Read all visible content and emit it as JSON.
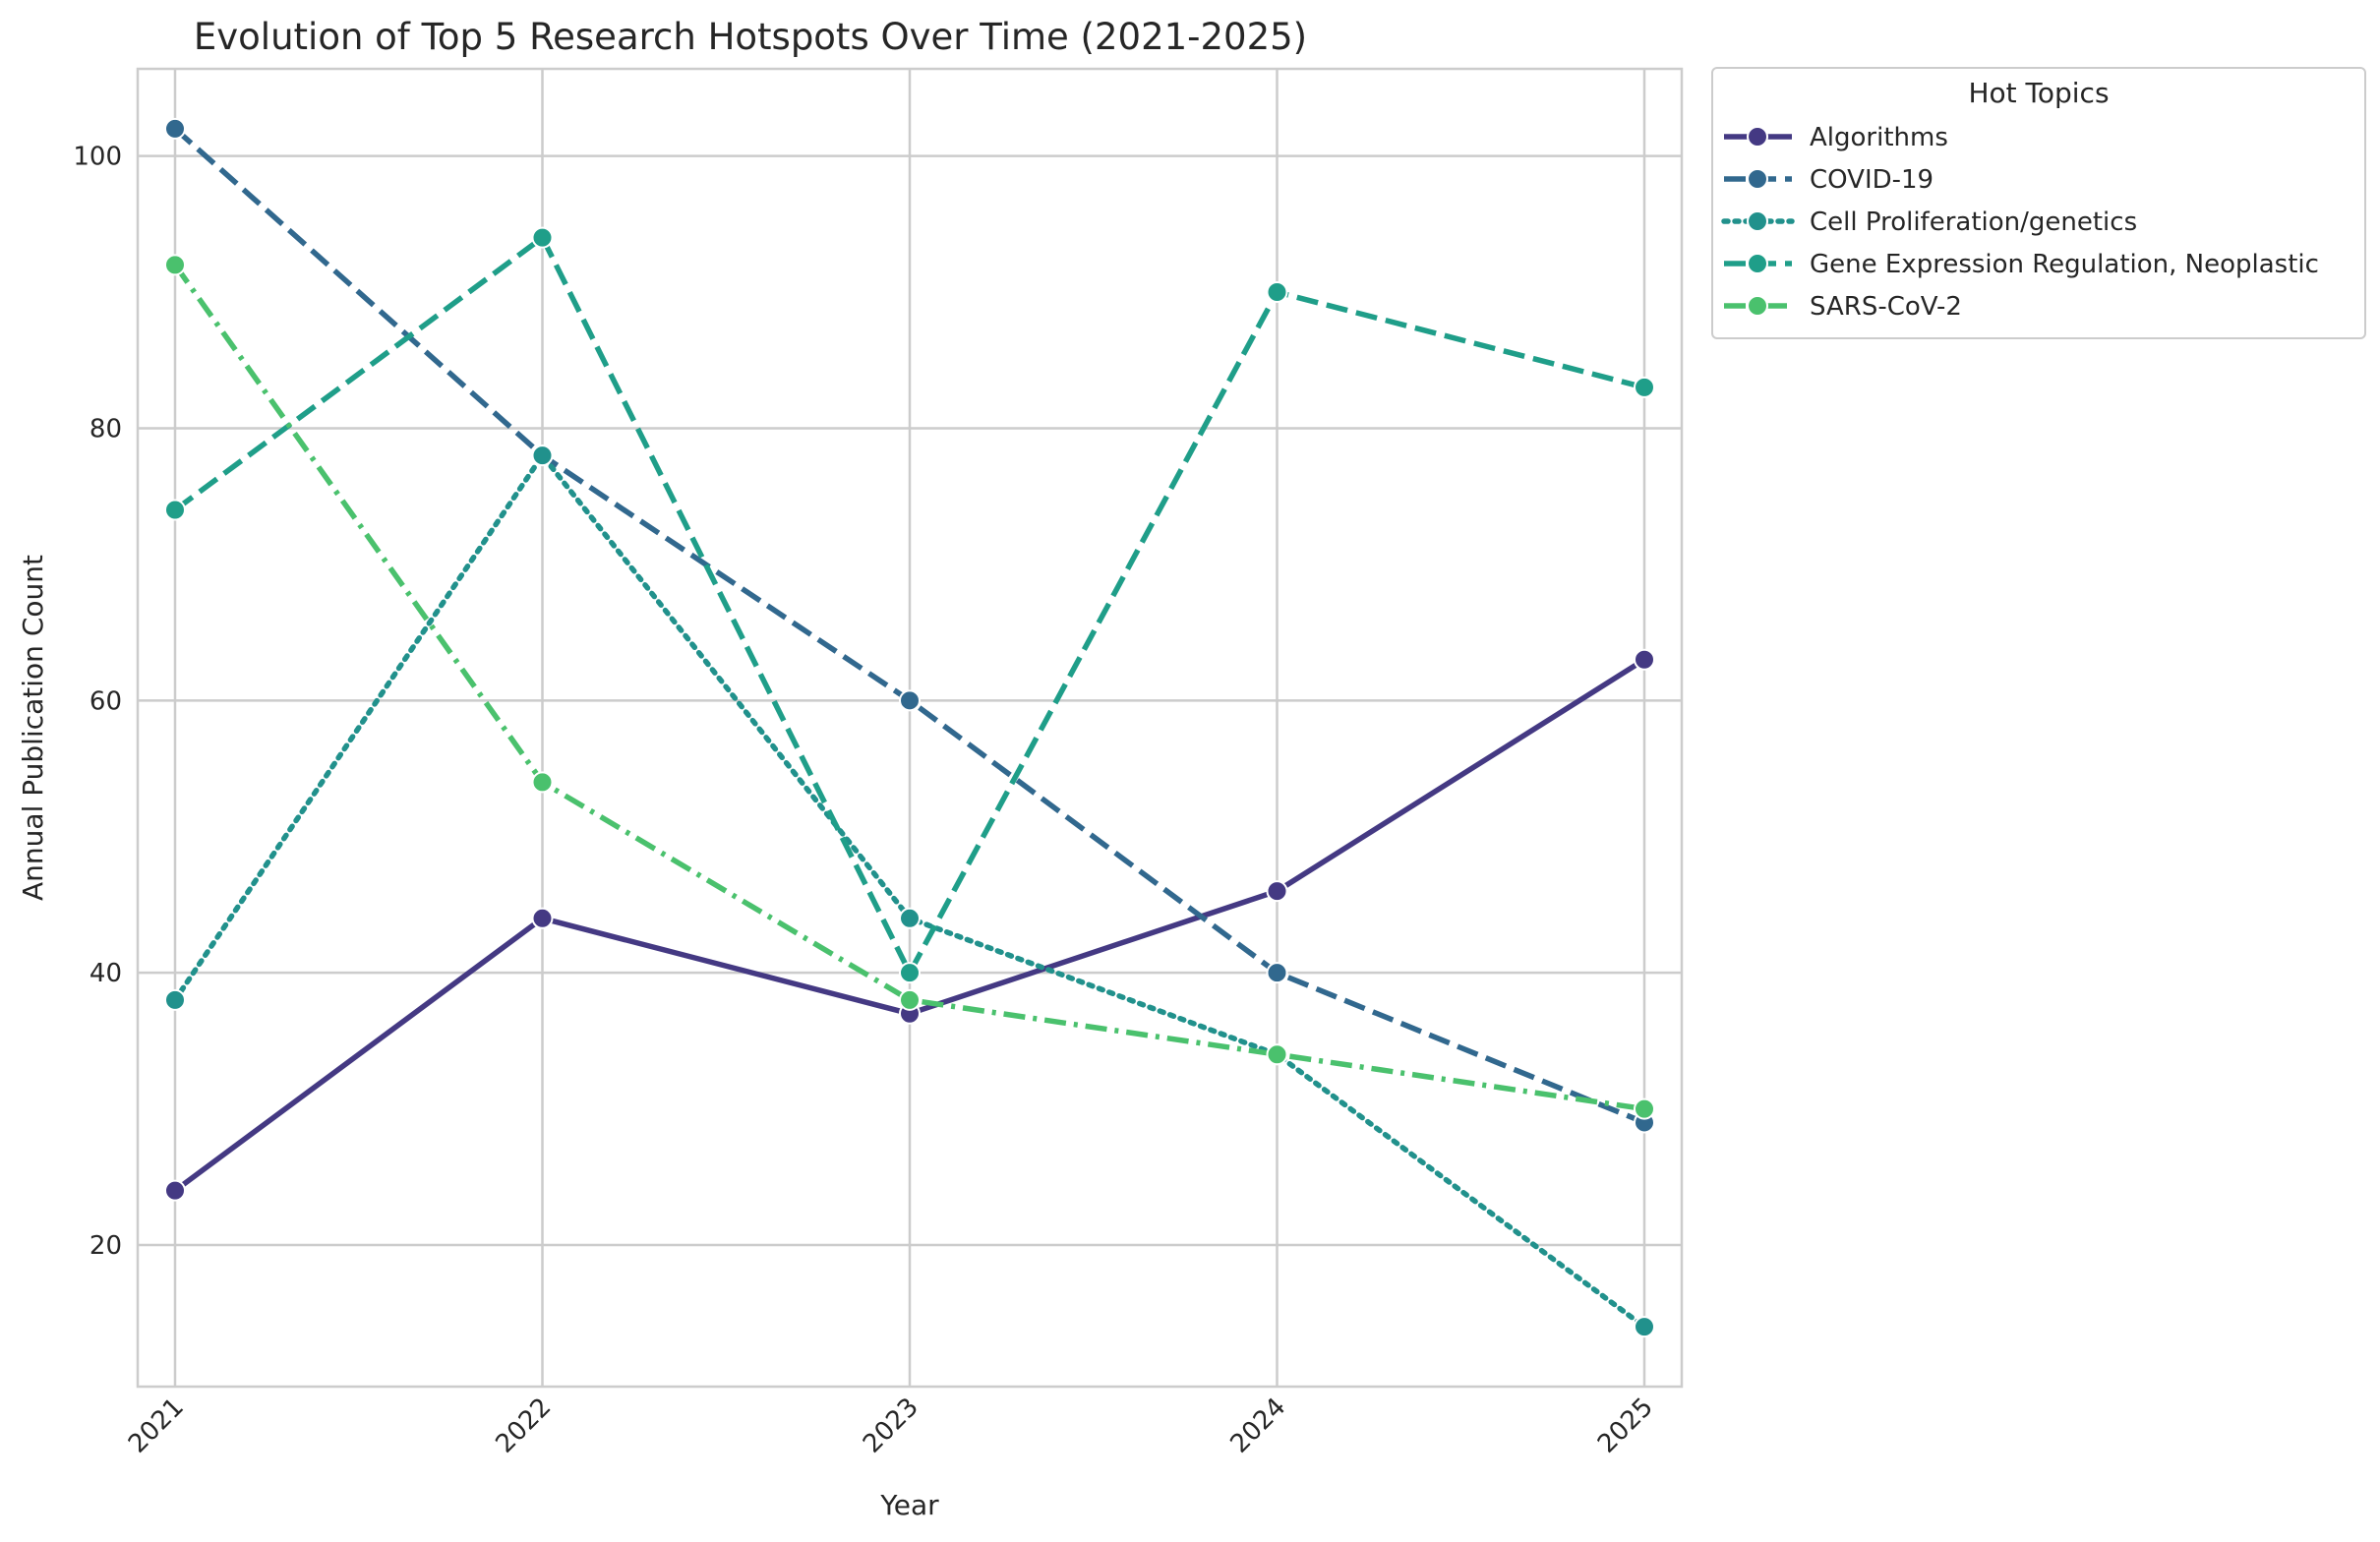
{
  "chart_data": {
    "type": "line",
    "title": "Evolution of Top 5 Research Hotspots Over Time (2021-2025)",
    "xlabel": "Year",
    "ylabel": "Annual Publication Count",
    "x": [
      "2021",
      "2022",
      "2023",
      "2024",
      "2025"
    ],
    "ylim": [
      9.6,
      106.4
    ],
    "yticks": [
      20,
      40,
      60,
      80,
      100
    ],
    "grid": true,
    "legend": {
      "title": "Hot Topics",
      "placement": "outside-top-right"
    },
    "series": [
      {
        "name": "Algorithms",
        "values": [
          24,
          44,
          37,
          46,
          63
        ],
        "color": "#443983",
        "dash": "solid"
      },
      {
        "name": "COVID-19",
        "values": [
          102,
          78,
          60,
          40,
          29
        ],
        "color": "#31688e",
        "dash": "dashed"
      },
      {
        "name": "Cell Proliferation/genetics",
        "values": [
          38,
          78,
          44,
          34,
          14
        ],
        "color": "#21918c",
        "dash": "dotted"
      },
      {
        "name": "Gene Expression Regulation, Neoplastic",
        "values": [
          74,
          94,
          40,
          90,
          83
        ],
        "color": "#1f9e89",
        "dash": "dashed"
      },
      {
        "name": "SARS-CoV-2",
        "values": [
          92,
          54,
          38,
          34,
          30
        ],
        "color": "#4ac16d",
        "dash": "dashdot"
      }
    ]
  }
}
